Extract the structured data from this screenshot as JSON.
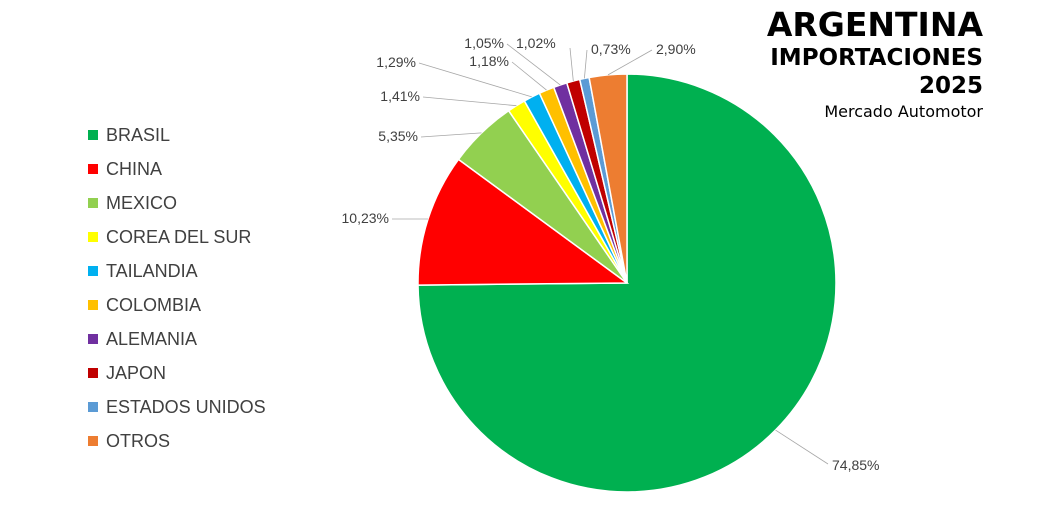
{
  "title": {
    "line1": "ARGENTINA",
    "line2": "IMPORTACIONES",
    "line3": "2025",
    "subtitle": "Mercado Automotor"
  },
  "chart_data": {
    "type": "pie",
    "start_angle_deg": 0,
    "direction": "clockwise",
    "legend_position": "left",
    "slices": [
      {
        "label": "BRASIL",
        "value": 74.85,
        "display": "74,85%",
        "color": "#00B050"
      },
      {
        "label": "CHINA",
        "value": 10.23,
        "display": "10,23%",
        "color": "#FF0000"
      },
      {
        "label": "MEXICO",
        "value": 5.35,
        "display": "5,35%",
        "color": "#92D050"
      },
      {
        "label": "COREA DEL SUR",
        "value": 1.41,
        "display": "1,41%",
        "color": "#FFFF00"
      },
      {
        "label": "TAILANDIA",
        "value": 1.29,
        "display": "1,29%",
        "color": "#00B0F0"
      },
      {
        "label": "COLOMBIA",
        "value": 1.18,
        "display": "1,18%",
        "color": "#FFC000"
      },
      {
        "label": "ALEMANIA",
        "value": 1.05,
        "display": "1,05%",
        "color": "#7030A0"
      },
      {
        "label": "JAPON",
        "value": 1.02,
        "display": "1,02%",
        "color": "#C00000"
      },
      {
        "label": "ESTADOS UNIDOS",
        "value": 0.73,
        "display": "0,73%",
        "color": "#5B9BD5"
      },
      {
        "label": "OTROS",
        "value": 2.9,
        "display": "2,90%",
        "color": "#ED7D31"
      }
    ]
  }
}
